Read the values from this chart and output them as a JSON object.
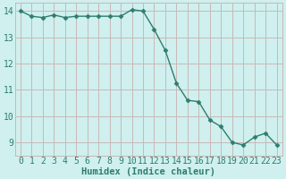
{
  "x": [
    0,
    1,
    2,
    3,
    4,
    5,
    6,
    7,
    8,
    9,
    10,
    11,
    12,
    13,
    14,
    15,
    16,
    17,
    18,
    19,
    20,
    21,
    22,
    23
  ],
  "y": [
    14.0,
    13.8,
    13.75,
    13.85,
    13.75,
    13.8,
    13.8,
    13.8,
    13.8,
    13.8,
    14.05,
    14.0,
    13.3,
    12.5,
    11.25,
    10.6,
    10.55,
    9.85,
    9.6,
    9.0,
    8.9,
    9.2,
    9.35,
    8.9
  ],
  "line_color": "#2e7d6e",
  "marker": "D",
  "marker_size": 2.5,
  "bg_color": "#cff0ee",
  "grid_color": "#c8b8b8",
  "xlabel": "Humidex (Indice chaleur)",
  "xlim": [
    -0.5,
    23.5
  ],
  "ylim": [
    8.5,
    14.3
  ],
  "yticks": [
    9,
    10,
    11,
    12,
    13,
    14
  ],
  "xticks": [
    0,
    1,
    2,
    3,
    4,
    5,
    6,
    7,
    8,
    9,
    10,
    11,
    12,
    13,
    14,
    15,
    16,
    17,
    18,
    19,
    20,
    21,
    22,
    23
  ],
  "xlabel_fontsize": 7.5,
  "tick_fontsize": 7,
  "line_width": 1.0,
  "text_color": "#2e7d6e"
}
